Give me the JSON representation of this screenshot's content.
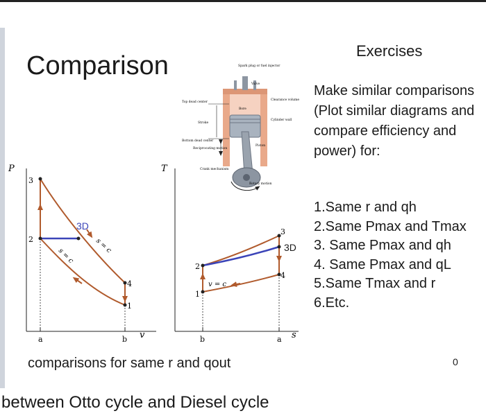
{
  "slide": {
    "title": "Comparison",
    "caption": "comparisons for same r and qout",
    "slide_number": "0",
    "footer": "between Otto cycle and Diesel cycle"
  },
  "exercises": {
    "heading": "Exercises",
    "intro": "Make similar comparisons (Plot similar diagrams and compare efficiency and power) for:",
    "items": [
      "1.Same r and qh",
      "2.Same Pmax and Tmax",
      "3. Same Pmax and qh",
      "4. Same Pmax and qL",
      "5.Same Tmax and r",
      "6.Etc."
    ]
  },
  "pv_diagram": {
    "y_axis": "P",
    "x_axis": "v",
    "x_ticks": [
      "a",
      "b"
    ],
    "state_labels": [
      "1",
      "2",
      "3",
      "4"
    ],
    "curve_labels": [
      "s = c",
      "s = c"
    ],
    "diesel_label": "3D"
  },
  "ts_diagram": {
    "y_axis": "T",
    "x_axis": "s",
    "x_ticks": [
      "b",
      "a"
    ],
    "state_labels": [
      "1",
      "2",
      "3",
      "4"
    ],
    "curve_label": "v = c",
    "diesel_label": "3D"
  },
  "engine": {
    "labels": [
      "Spark plug or fuel injector",
      "Valve",
      "Top dead center",
      "Clearance volume",
      "Bore",
      "Cylinder wall",
      "Stroke",
      "Bottom dead center",
      "Reciprocating motion",
      "Piston",
      "Crank mechanism",
      "Rotary motion"
    ]
  },
  "colors": {
    "otto": "#b05a2c",
    "diesel": "#3b44b8",
    "engine_body": "#e9a98a"
  }
}
